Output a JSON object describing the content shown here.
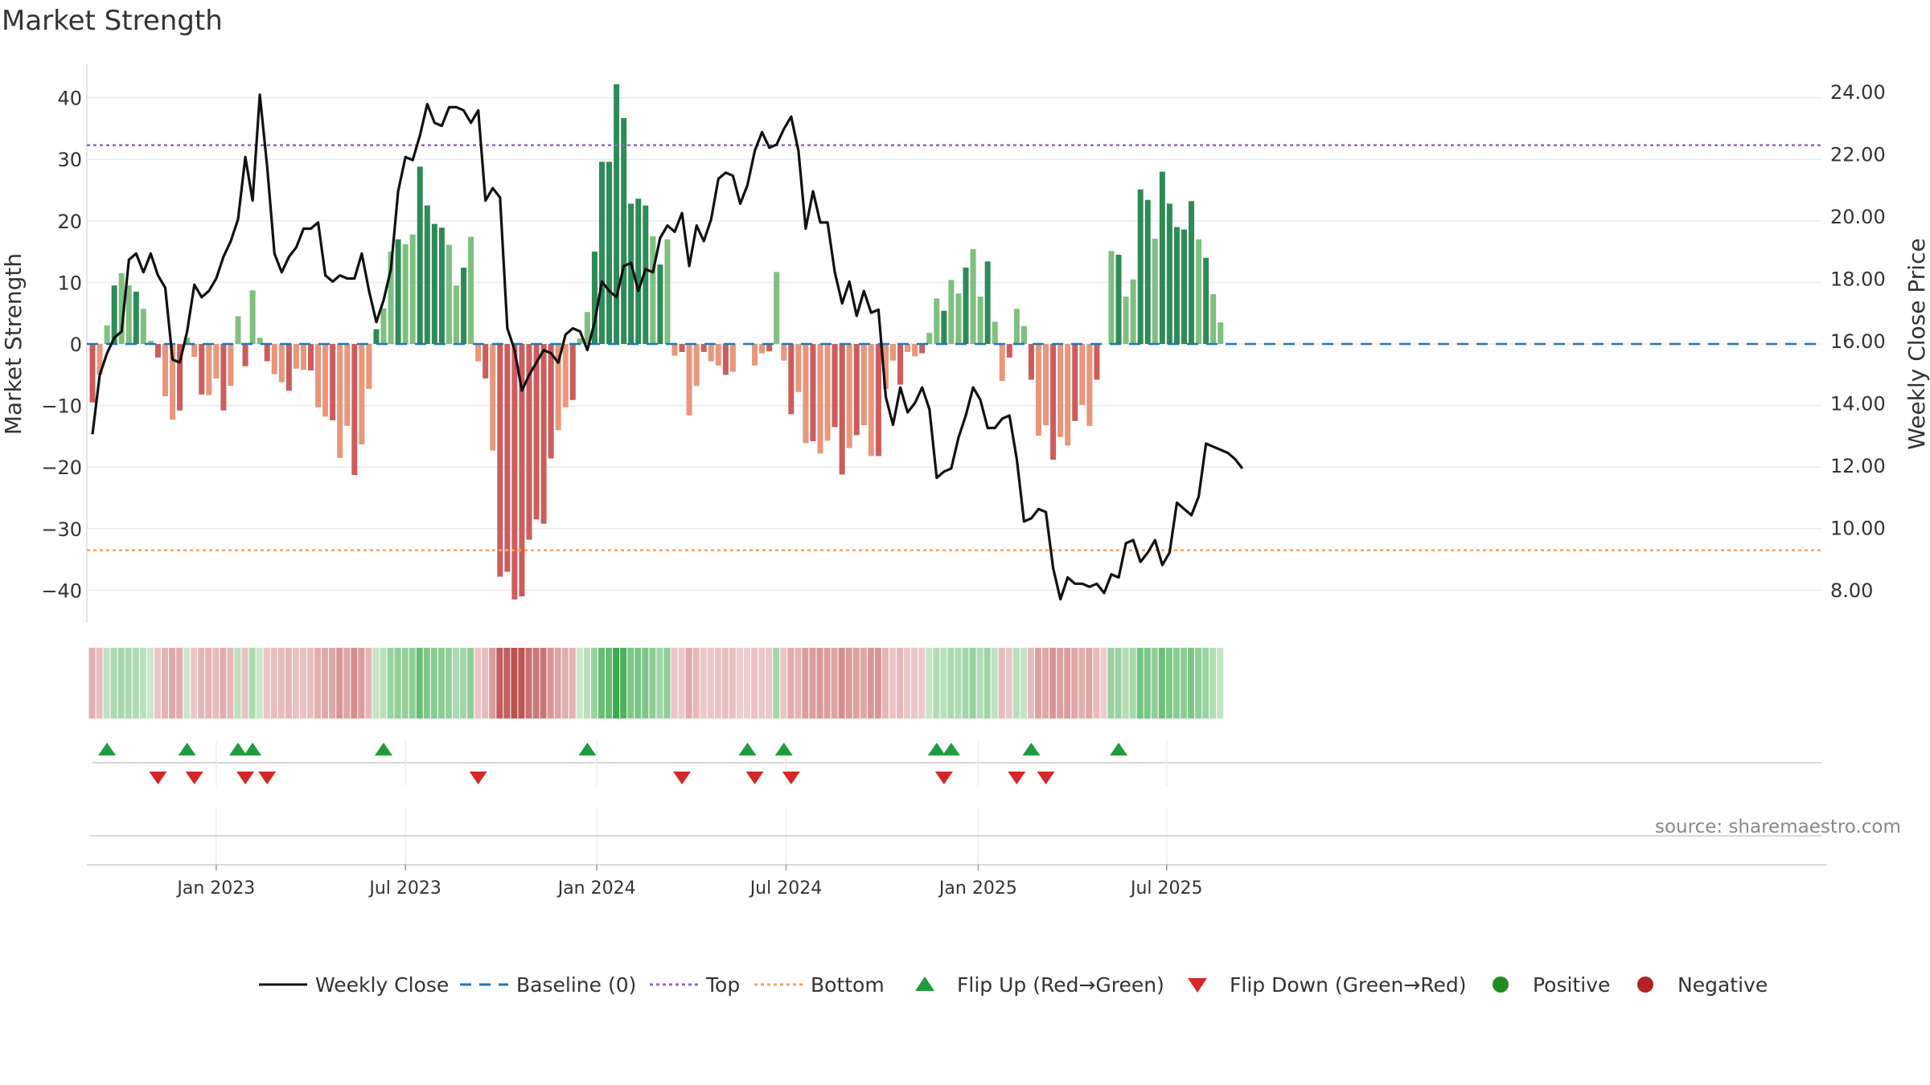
{
  "title": "Market Strength",
  "source": "source: sharemaestro.com",
  "colors": {
    "pos_dark": "#2e8b57",
    "pos_light": "#7fbf7f",
    "neg_dark": "#cd5c5c",
    "neg_light": "#e9967a",
    "close": "#111111",
    "baseline": "#1f77b4",
    "top": "#9467bd",
    "bottom": "#f4a261",
    "flip_up": "#1f9d3e",
    "flip_down": "#d62728",
    "positive": "#228b22",
    "negative": "#b22222"
  },
  "chart_data": {
    "type": "bar+line",
    "title": "Market Strength",
    "ylabel_left": "Market Strength",
    "ylabel_right": "Weekly Close Price",
    "ylim_left": [
      -45,
      45
    ],
    "ylim_right": [
      6.3,
      24.5
    ],
    "yticks_left": [
      40,
      30,
      20,
      10,
      0,
      -10,
      -20,
      -30,
      -40
    ],
    "ytick_labels_left": [
      "40",
      "30",
      "20",
      "10",
      "0",
      "−10",
      "−20",
      "−30",
      "−40"
    ],
    "yticks_right": [
      "24.00",
      "22.00",
      "20.00",
      "18.00",
      "16.00",
      "14.00",
      "12.00",
      "10.00",
      "8.00"
    ],
    "x_ticks": [
      {
        "label": "Jan 2023",
        "week": 17
      },
      {
        "label": "Jul 2023",
        "week": 43
      },
      {
        "label": "Jan 2024",
        "week": 69.3
      },
      {
        "label": "Jul 2024",
        "week": 95.3
      },
      {
        "label": "Jan 2025",
        "week": 121.7
      },
      {
        "label": "Jul 2025",
        "week": 147.6
      }
    ],
    "top_level": 32.3,
    "bottom_level": -33.5,
    "baseline": 0,
    "strength": [
      -9.5,
      -5,
      3,
      9.5,
      11.5,
      9.5,
      8.5,
      5.7,
      0.5,
      -2.2,
      -8.5,
      -12.3,
      -10.8,
      1,
      -2.1,
      -8.2,
      -8.3,
      -5.6,
      -10.8,
      -6.8,
      4.5,
      -3.6,
      8.7,
      1,
      -2.8,
      -4.9,
      -6.2,
      -7.6,
      -4,
      -4.2,
      -4.3,
      -10.3,
      -11.8,
      -12.4,
      -18.5,
      -13.3,
      -21.3,
      -16.3,
      -7.3,
      2.4,
      5.8,
      15,
      17,
      16.2,
      17.8,
      28.8,
      22.5,
      19.5,
      18.9,
      16.1,
      9.5,
      12.4,
      17.4,
      -2.8,
      -5.6,
      -17.3,
      -37.8,
      -37,
      -41.5,
      -41,
      -31.8,
      -28.5,
      -29.2,
      -18.6,
      -14,
      -10.3,
      -9.1,
      0.9,
      5.2,
      15,
      29.6,
      29.6,
      42.2,
      36.7,
      22.8,
      23.6,
      22.5,
      17.5,
      12.9,
      17,
      -1.9,
      -1.3,
      -11.6,
      -6.8,
      -1.3,
      -2.8,
      -3.5,
      -5,
      -4.5,
      0,
      0,
      -3.5,
      -1.5,
      -1.2,
      11.7,
      -2.7,
      -11.4,
      -7.8,
      -16.1,
      -15.8,
      -17.8,
      -15.7,
      -13.5,
      -21.2,
      -16.9,
      -14.8,
      -13.2,
      -18.2,
      -18.2,
      -7.3,
      -2.7,
      -6.6,
      -1.3,
      -2,
      -1.5,
      1.8,
      7.4,
      5.4,
      10.4,
      8.2,
      12.4,
      15.4,
      7.7,
      13.4,
      3.6,
      -6,
      -2.2,
      5.7,
      2.9,
      -5.8,
      -14.9,
      -13.2,
      -18.8,
      -15.1,
      -16.5,
      -12.5,
      -9.9,
      -13.3,
      -5.8,
      0,
      15.1,
      14.5,
      7.7,
      10.5,
      25.1,
      23.4,
      17.1,
      28,
      22.8,
      19,
      18.6,
      23.2,
      17,
      14,
      8.1,
      3.5
    ],
    "close": [
      13,
      14.9,
      15.6,
      16.1,
      16.3,
      18.6,
      18.8,
      18.2,
      18.8,
      18.1,
      17.7,
      15.4,
      15.3,
      16.3,
      17.8,
      17.4,
      17.6,
      18,
      18.7,
      19.2,
      19.9,
      21.9,
      20.5,
      23.9,
      21.6,
      18.8,
      18.2,
      18.7,
      19,
      19.6,
      19.6,
      19.8,
      18.1,
      17.9,
      18.1,
      18,
      18,
      18.8,
      17.6,
      16.6,
      17.3,
      18.3,
      20.8,
      21.9,
      21.8,
      22.6,
      23.6,
      23,
      22.9,
      23.5,
      23.5,
      23.4,
      23,
      23.4,
      20.5,
      20.9,
      20.6,
      16.4,
      15.7,
      14.4,
      14.9,
      15.3,
      15.7,
      15.6,
      15.3,
      16.2,
      16.4,
      16.3,
      15.7,
      16.6,
      17.9,
      17.6,
      17.4,
      18.4,
      18.5,
      17.6,
      18.3,
      18.2,
      19.3,
      19.7,
      19.5,
      20.1,
      18.4,
      19.7,
      19.2,
      19.9,
      21.2,
      21.4,
      21.3,
      20.4,
      21,
      22.1,
      22.7,
      22.2,
      22.3,
      22.8,
      23.2,
      22.1,
      19.6,
      20.8,
      19.8,
      19.8,
      18.2,
      17.2,
      17.9,
      16.8,
      17.6,
      16.9,
      17,
      14.2,
      13.3,
      14.5,
      13.7,
      14,
      14.5,
      13.8,
      11.6,
      11.8,
      11.9,
      12.9,
      13.6,
      14.5,
      14.1,
      13.2,
      13.2,
      13.5,
      13.6,
      12.2,
      10.2,
      10.3,
      10.6,
      10.5,
      8.7,
      7.7,
      8.4,
      8.2,
      8.2,
      8.1,
      8.2,
      7.9,
      8.5,
      8.4,
      9.5,
      9.6,
      8.9,
      9.2,
      9.6,
      8.8,
      9.2,
      10.8,
      10.6,
      10.4,
      11,
      12.7,
      12.6,
      12.5,
      12.4,
      12.2,
      11.9
    ],
    "heat_strip_intensity_source": "strength",
    "flip_up_weeks": [
      2,
      13,
      20,
      22,
      40,
      68,
      90,
      95,
      116,
      118,
      129,
      141
    ],
    "flip_down_weeks": [
      9,
      14,
      21,
      24,
      53,
      81,
      91,
      96,
      117,
      127,
      131
    ],
    "legend": [
      "Weekly Close",
      "Baseline (0)",
      "Top",
      "Bottom",
      "Flip Up (Red→Green)",
      "Flip Down (Green→Red)",
      "Positive",
      "Negative"
    ],
    "legend_position": "bottom-center"
  }
}
